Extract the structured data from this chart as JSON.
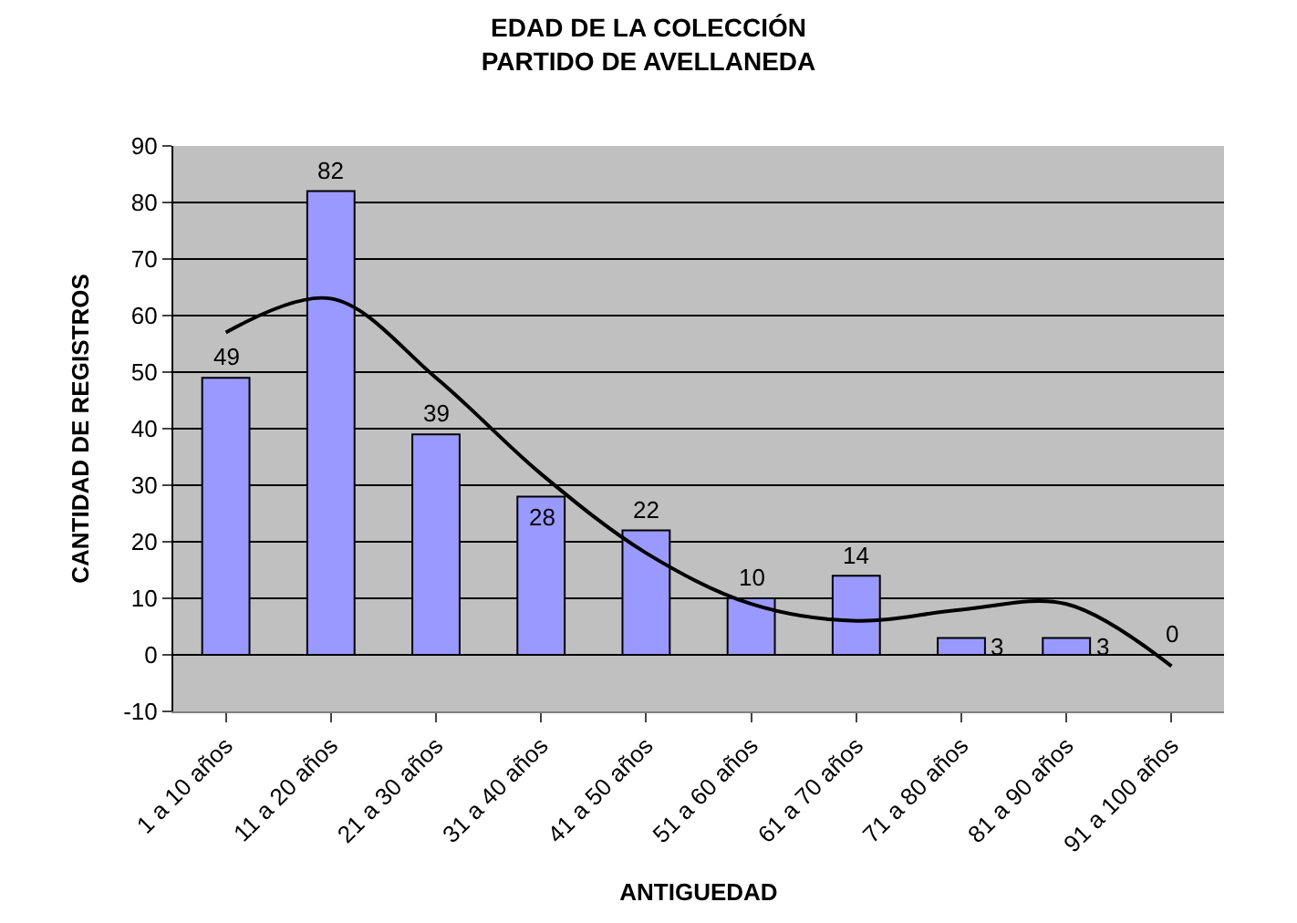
{
  "chart_data": {
    "type": "bar",
    "title": "EDAD DE LA COLECCIÓN\nPARTIDO DE AVELLANEDA",
    "xlabel": "ANTIGUEDAD",
    "ylabel": "CANTIDAD DE REGISTROS",
    "categories": [
      "1 a 10 años",
      "11 a 20 años",
      "21 a 30 años",
      "31 a 40 años",
      "41 a 50 años",
      "51 a 60 años",
      "61 a 70 años",
      "71 a 80 años",
      "81 a 90 años",
      "91 a 100 años"
    ],
    "series": [
      {
        "color": "#9999ff",
        "values": [
          49,
          82,
          39,
          28,
          22,
          10,
          14,
          3,
          3,
          0
        ],
        "data_labels": true
      },
      {
        "type": "line",
        "color": "#000000",
        "values": [
          57,
          63,
          49,
          32,
          18,
          9,
          6,
          8,
          9,
          -2
        ]
      }
    ],
    "ylim": [
      -10,
      90
    ],
    "yticks": [
      -10,
      0,
      10,
      20,
      30,
      40,
      50,
      60,
      70,
      80,
      90
    ],
    "grid": "y"
  }
}
